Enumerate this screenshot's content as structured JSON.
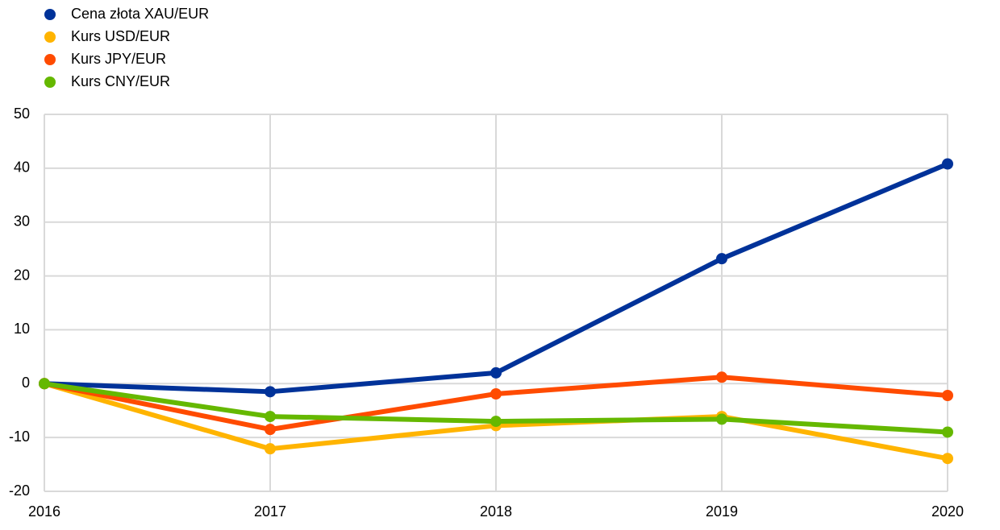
{
  "chart_data": {
    "type": "line",
    "x": [
      2016,
      2017,
      2018,
      2019,
      2020
    ],
    "xlim": [
      2016,
      2020
    ],
    "xticks": [
      2016,
      2017,
      2018,
      2019,
      2020
    ],
    "ylim": [
      -20,
      50
    ],
    "yticks": [
      -20,
      -10,
      0,
      10,
      20,
      30,
      40,
      50
    ],
    "grid": true,
    "legend": "top-left",
    "series": [
      {
        "name": "Cena złota XAU/EUR",
        "color": "#003299",
        "values": [
          0,
          -1.5,
          2,
          23.2,
          40.8
        ]
      },
      {
        "name": "Kurs USD/EUR",
        "color": "#ffb400",
        "values": [
          0,
          -12.1,
          -7.8,
          -6.1,
          -13.9
        ]
      },
      {
        "name": "Kurs JPY/EUR",
        "color": "#ff4b00",
        "values": [
          0,
          -8.5,
          -1.9,
          1.2,
          -2.2
        ]
      },
      {
        "name": "Kurs CNY/EUR",
        "color": "#65b800",
        "values": [
          0,
          -6.1,
          -7.0,
          -6.6,
          -9.0
        ]
      }
    ]
  }
}
